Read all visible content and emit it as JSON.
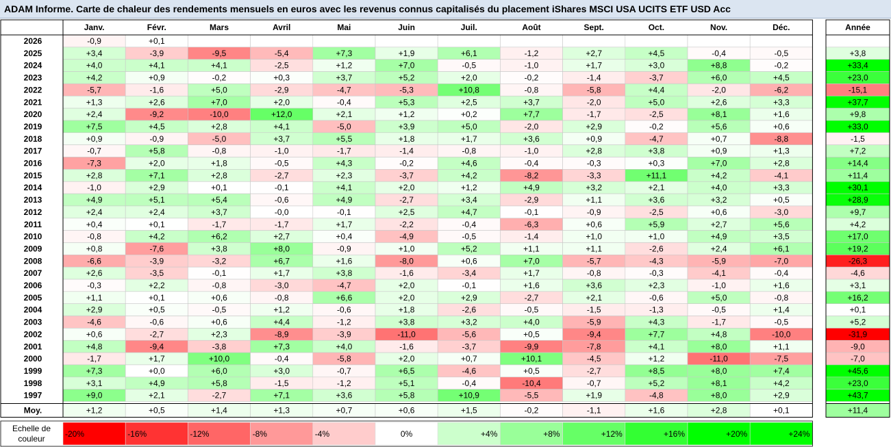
{
  "title": "ADAM Informe. Carte de chaleur des rendements mensuels en euros avec les revenus connus capitalisés du placement iShares MSCI USA UCITS ETF USD Acc",
  "chart_data": {
    "type": "heatmap",
    "title": "ADAM Informe. Carte de chaleur des rendements mensuels en euros avec les revenus connus capitalisés du placement iShares MSCI USA UCITS ETF USD Acc",
    "months": [
      "Janv.",
      "Févr.",
      "Mars",
      "Avril",
      "Mai",
      "Juin",
      "Juil.",
      "Août",
      "Sept.",
      "Oct.",
      "Nov.",
      "Déc."
    ],
    "year_header": "Année",
    "avg_label": "Moy.",
    "scale_label": [
      "Echelle de",
      "couleur"
    ],
    "rows": [
      {
        "year": "2026",
        "values": [
          "-0,9",
          "+0,1",
          "",
          "",
          "",
          "",
          "",
          "",
          "",
          "",
          "",
          ""
        ],
        "annual": ""
      },
      {
        "year": "2025",
        "values": [
          "+3,4",
          "-3,9",
          "-9,5",
          "-5,4",
          "+7,3",
          "+1,9",
          "+6,1",
          "-1,2",
          "+2,7",
          "+4,5",
          "-0,4",
          "-0,5"
        ],
        "annual": "+3,8"
      },
      {
        "year": "2024",
        "values": [
          "+4,0",
          "+4,1",
          "+4,1",
          "-2,5",
          "+1,2",
          "+7,0",
          "-0,5",
          "-1,0",
          "+1,7",
          "+3,0",
          "+8,8",
          "-0,2"
        ],
        "annual": "+33,4"
      },
      {
        "year": "2023",
        "values": [
          "+4,2",
          "+0,9",
          "-0,2",
          "+0,3",
          "+3,7",
          "+5,2",
          "+2,0",
          "-0,2",
          "-1,4",
          "-3,7",
          "+6,0",
          "+4,5"
        ],
        "annual": "+23,0"
      },
      {
        "year": "2022",
        "values": [
          "-5,7",
          "-1,6",
          "+5,0",
          "-2,9",
          "-4,7",
          "-5,3",
          "+10,8",
          "-0,8",
          "-5,8",
          "+4,4",
          "-2,0",
          "-6,2"
        ],
        "annual": "-15,1"
      },
      {
        "year": "2021",
        "values": [
          "+1,3",
          "+2,6",
          "+7,0",
          "+2,0",
          "-0,4",
          "+5,3",
          "+2,5",
          "+3,7",
          "-2,0",
          "+5,0",
          "+2,6",
          "+3,3"
        ],
        "annual": "+37,7"
      },
      {
        "year": "2020",
        "values": [
          "+2,4",
          "-9,2",
          "-10,0",
          "+12,0",
          "+2,1",
          "+1,2",
          "+0,2",
          "+7,7",
          "-1,7",
          "-2,5",
          "+8,1",
          "+1,6"
        ],
        "annual": "+9,8"
      },
      {
        "year": "2019",
        "values": [
          "+7,5",
          "+4,5",
          "+2,8",
          "+4,1",
          "-5,0",
          "+3,9",
          "+5,0",
          "-2,0",
          "+2,9",
          "-0,2",
          "+5,6",
          "+0,6"
        ],
        "annual": "+33,0"
      },
      {
        "year": "2018",
        "values": [
          "+0,9",
          "-0,9",
          "-5,0",
          "+3,7",
          "+5,5",
          "+1,8",
          "+1,7",
          "+3,6",
          "+0,9",
          "-4,7",
          "+0,7",
          "-8,8"
        ],
        "annual": "-1,5"
      },
      {
        "year": "2017",
        "values": [
          "-0,7",
          "+5,8",
          "-0,8",
          "-1,0",
          "-1,7",
          "-1,4",
          "-0,8",
          "-1,0",
          "+2,8",
          "+3,8",
          "+0,9",
          "+1,3"
        ],
        "annual": "+7,2"
      },
      {
        "year": "2016",
        "values": [
          "-7,3",
          "+2,0",
          "+1,8",
          "-0,5",
          "+4,3",
          "-0,2",
          "+4,6",
          "-0,4",
          "-0,3",
          "+0,3",
          "+7,0",
          "+2,8"
        ],
        "annual": "+14,4"
      },
      {
        "year": "2015",
        "values": [
          "+2,8",
          "+7,1",
          "+2,8",
          "-2,7",
          "+2,3",
          "-3,7",
          "+4,2",
          "-8,2",
          "-3,3",
          "+11,1",
          "+4,2",
          "-4,1"
        ],
        "annual": "+11,4"
      },
      {
        "year": "2014",
        "values": [
          "-1,0",
          "+2,9",
          "+0,1",
          "-0,1",
          "+4,1",
          "+2,0",
          "+1,2",
          "+4,9",
          "+3,2",
          "+2,1",
          "+4,0",
          "+3,3"
        ],
        "annual": "+30,1"
      },
      {
        "year": "2013",
        "values": [
          "+4,9",
          "+5,1",
          "+5,4",
          "-0,6",
          "+4,9",
          "-2,7",
          "+3,4",
          "-2,9",
          "+1,1",
          "+3,6",
          "+3,2",
          "+0,5"
        ],
        "annual": "+28,9"
      },
      {
        "year": "2012",
        "values": [
          "+2,4",
          "+2,4",
          "+3,7",
          "-0,0",
          "-0,1",
          "+2,5",
          "+4,7",
          "-0,1",
          "-0,9",
          "-2,5",
          "+0,6",
          "-3,0"
        ],
        "annual": "+9,7"
      },
      {
        "year": "2011",
        "values": [
          "+0,4",
          "+0,1",
          "-1,7",
          "-1,7",
          "+1,7",
          "-2,2",
          "-0,4",
          "-6,3",
          "+0,6",
          "+5,9",
          "+2,7",
          "+5,6"
        ],
        "annual": "+4,2"
      },
      {
        "year": "2010",
        "values": [
          "-0,8",
          "+4,2",
          "+6,2",
          "+2,7",
          "+0,4",
          "-4,9",
          "-0,5",
          "-1,4",
          "+1,0",
          "+1,0",
          "+4,9",
          "+3,5"
        ],
        "annual": "+17,0"
      },
      {
        "year": "2009",
        "values": [
          "+0,8",
          "-7,6",
          "+3,8",
          "+8,0",
          "-0,9",
          "+1,0",
          "+5,2",
          "+1,1",
          "+1,1",
          "-2,6",
          "+2,4",
          "+6,1"
        ],
        "annual": "+19,2"
      },
      {
        "year": "2008",
        "values": [
          "-6,6",
          "-3,9",
          "-3,2",
          "+6,7",
          "+1,6",
          "-8,0",
          "+0,6",
          "+7,0",
          "-5,7",
          "-4,3",
          "-5,9",
          "-7,0"
        ],
        "annual": "-26,3"
      },
      {
        "year": "2007",
        "values": [
          "+2,6",
          "-3,5",
          "-0,1",
          "+1,7",
          "+3,8",
          "-1,6",
          "-3,4",
          "+1,7",
          "-0,8",
          "-0,3",
          "-4,1",
          "-0,4"
        ],
        "annual": "-4,6"
      },
      {
        "year": "2006",
        "values": [
          "-0,3",
          "+2,2",
          "-0,8",
          "-3,0",
          "-4,7",
          "+2,0",
          "-0,1",
          "+1,6",
          "+3,6",
          "+2,3",
          "-1,0",
          "+1,6"
        ],
        "annual": "+3,1"
      },
      {
        "year": "2005",
        "values": [
          "+1,1",
          "+0,1",
          "+0,6",
          "-0,8",
          "+6,6",
          "+2,0",
          "+2,9",
          "-2,7",
          "+2,1",
          "-0,6",
          "+5,0",
          "-0,8"
        ],
        "annual": "+16,2"
      },
      {
        "year": "2004",
        "values": [
          "+2,9",
          "+0,5",
          "-0,5",
          "+1,2",
          "-0,6",
          "+1,8",
          "-2,6",
          "-0,5",
          "-1,5",
          "-1,3",
          "-0,5",
          "+1,4"
        ],
        "annual": "+0,1"
      },
      {
        "year": "2003",
        "values": [
          "-4,6",
          "-0,6",
          "+0,6",
          "+4,4",
          "-1,2",
          "+3,8",
          "+3,2",
          "+4,0",
          "-5,9",
          "+4,3",
          "-1,7",
          "-0,5"
        ],
        "annual": "+5,2"
      },
      {
        "year": "2002",
        "values": [
          "+0,6",
          "-2,7",
          "+2,3",
          "-8,9",
          "-3,9",
          "-11,0",
          "-5,6",
          "+0,5",
          "-9,4",
          "+7,7",
          "+4,8",
          "-10,0"
        ],
        "annual": "-31,9"
      },
      {
        "year": "2001",
        "values": [
          "+4,8",
          "-9,4",
          "-3,8",
          "+7,3",
          "+4,0",
          "-1,6",
          "-3,7",
          "-9,9",
          "-7,8",
          "+4,1",
          "+8,0",
          "+1,1"
        ],
        "annual": "-9,0"
      },
      {
        "year": "2000",
        "values": [
          "-1,7",
          "+1,7",
          "+10,0",
          "-0,4",
          "-5,8",
          "+2,0",
          "+0,7",
          "+10,1",
          "-4,5",
          "+1,2",
          "-11,0",
          "-7,5"
        ],
        "annual": "-7,0"
      },
      {
        "year": "1999",
        "values": [
          "+7,3",
          "+0,0",
          "+6,0",
          "+3,0",
          "-0,7",
          "+6,5",
          "-4,6",
          "+0,5",
          "-2,7",
          "+8,5",
          "+8,0",
          "+7,4"
        ],
        "annual": "+45,6"
      },
      {
        "year": "1998",
        "values": [
          "+3,1",
          "+4,9",
          "+5,8",
          "-1,5",
          "-1,2",
          "+5,1",
          "-0,4",
          "-10,4",
          "-0,7",
          "+5,2",
          "+8,1",
          "+4,2"
        ],
        "annual": "+23,0"
      },
      {
        "year": "1997",
        "values": [
          "+9,0",
          "+2,1",
          "-2,7",
          "+7,1",
          "+3,6",
          "+5,8",
          "+10,9",
          "-5,5",
          "+1,9",
          "-4,8",
          "+8,0",
          "+2,9"
        ],
        "annual": "+43,7"
      }
    ],
    "averages": [
      "+1,2",
      "+0,5",
      "+1,4",
      "+1,3",
      "+0,7",
      "+0,6",
      "+1,5",
      "-0,2",
      "-1,1",
      "+1,6",
      "+2,8",
      "+0,1"
    ],
    "average_annual": "+11,4",
    "color_scale": [
      {
        "label": "-20%",
        "value": -20,
        "color": "#ff0000"
      },
      {
        "label": "-16%",
        "value": -16,
        "color": "#ff3333"
      },
      {
        "label": "-12%",
        "value": -12,
        "color": "#ff6666"
      },
      {
        "label": "-8%",
        "value": -8,
        "color": "#ff9999"
      },
      {
        "label": "-4%",
        "value": -4,
        "color": "#ffcccc"
      },
      {
        "label": "0%",
        "value": 0,
        "color": "#ffffff"
      },
      {
        "label": "+4%",
        "value": 4,
        "color": "#ccffcc"
      },
      {
        "label": "+8%",
        "value": 8,
        "color": "#99ff99"
      },
      {
        "label": "+12%",
        "value": 12,
        "color": "#66ff66"
      },
      {
        "label": "+16%",
        "value": 16,
        "color": "#33ff33"
      },
      {
        "label": "+20%",
        "value": 20,
        "color": "#00ff00"
      },
      {
        "label": "+24%",
        "value": 24,
        "color": "#00ff00"
      }
    ]
  }
}
